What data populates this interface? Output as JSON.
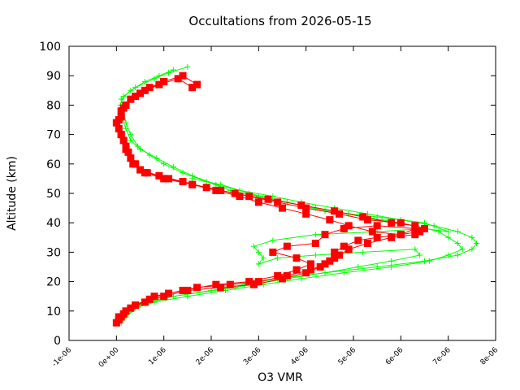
{
  "chart_data": {
    "type": "line",
    "title": "Occultations from 2026-05-15",
    "xlabel": "O3 VMR",
    "ylabel": "Altitude (km)",
    "xlim": [
      -1e-06,
      8e-06
    ],
    "ylim": [
      0,
      100
    ],
    "xticks": [
      -1e-06,
      0,
      1e-06,
      2e-06,
      3e-06,
      4e-06,
      5e-06,
      6e-06,
      7e-06,
      8e-06
    ],
    "xtick_labels": [
      "-1e-06",
      "0e+00",
      "1e-06",
      "2e-06",
      "3e-06",
      "4e-06",
      "5e-06",
      "6e-06",
      "7e-06",
      "8e-06"
    ],
    "yticks": [
      0,
      10,
      20,
      30,
      40,
      50,
      60,
      70,
      80,
      90,
      100
    ],
    "ytick_labels": [
      "0",
      "10",
      "20",
      "30",
      "40",
      "50",
      "60",
      "70",
      "80",
      "90",
      "100"
    ],
    "grid": false,
    "legend": "none",
    "series": [
      {
        "color": "#00ff00",
        "marker": "plus",
        "profiles": [
          [
            [
              1e-07,
              7
            ],
            [
              2e-07,
              9
            ],
            [
              3e-07,
              11
            ],
            [
              6e-07,
              13
            ],
            [
              1.2e-06,
              15
            ],
            [
              2e-06,
              17
            ],
            [
              2.7e-06,
              19
            ],
            [
              3.4e-06,
              21
            ],
            [
              4.4e-06,
              23
            ],
            [
              5.5e-06,
              25
            ],
            [
              6.5e-06,
              27
            ],
            [
              7.2e-06,
              29
            ],
            [
              7.5e-06,
              31
            ],
            [
              7.6e-06,
              33
            ],
            [
              7.5e-06,
              35
            ],
            [
              7.2e-06,
              37
            ],
            [
              6.7e-06,
              39
            ],
            [
              6e-06,
              41
            ],
            [
              5.3e-06,
              43
            ],
            [
              4.6e-06,
              45
            ],
            [
              3.9e-06,
              47
            ],
            [
              3.3e-06,
              49
            ],
            [
              2.6e-06,
              51
            ],
            [
              2.1e-06,
              53
            ],
            [
              1.6e-06,
              56
            ],
            [
              1.2e-06,
              59
            ],
            [
              8.5e-07,
              62
            ],
            [
              5e-07,
              65
            ],
            [
              3e-07,
              68
            ],
            [
              2e-07,
              72
            ],
            [
              1e-07,
              76
            ],
            [
              8e-08,
              80
            ],
            [
              1.5e-07,
              83
            ],
            [
              4e-07,
              86
            ],
            [
              8e-07,
              89
            ],
            [
              1.1e-06,
              91
            ],
            [
              1.5e-06,
              93
            ]
          ],
          [
            [
              1e-07,
              6
            ],
            [
              2e-07,
              8
            ],
            [
              4e-07,
              11
            ],
            [
              8e-07,
              13
            ],
            [
              1.5e-06,
              15
            ],
            [
              2.3e-06,
              17
            ],
            [
              3.1e-06,
              19
            ],
            [
              3.9e-06,
              21
            ],
            [
              4.8e-06,
              23
            ],
            [
              5.8e-06,
              25
            ],
            [
              6.6e-06,
              27
            ],
            [
              7e-06,
              29
            ],
            [
              7.3e-06,
              31
            ],
            [
              7.2e-06,
              33
            ],
            [
              7e-06,
              35
            ],
            [
              6.8e-06,
              37
            ],
            [
              6.3e-06,
              39
            ],
            [
              5.6e-06,
              41
            ],
            [
              4.9e-06,
              43
            ],
            [
              4.2e-06,
              45
            ],
            [
              3.6e-06,
              47
            ],
            [
              3e-06,
              49
            ],
            [
              2.4e-06,
              51
            ],
            [
              1.9e-06,
              54
            ],
            [
              1.4e-06,
              57
            ],
            [
              1e-06,
              60
            ],
            [
              7e-07,
              63
            ],
            [
              4.5e-07,
              66
            ],
            [
              3e-07,
              70
            ],
            [
              2e-07,
              74
            ],
            [
              1.5e-07,
              78
            ],
            [
              1e-07,
              82
            ],
            [
              3e-07,
              85
            ],
            [
              6e-07,
              88
            ],
            [
              9e-07,
              90
            ],
            [
              1.2e-06,
              92
            ]
          ],
          [
            [
              2e-07,
              8
            ],
            [
              5e-07,
              12
            ],
            [
              1.2e-06,
              15
            ],
            [
              2.5e-06,
              18
            ],
            [
              3.6e-06,
              21
            ],
            [
              4.4e-06,
              23
            ],
            [
              5.1e-06,
              25
            ],
            [
              5.8e-06,
              27
            ],
            [
              6.4e-06,
              29
            ],
            [
              6.3e-06,
              31
            ],
            [
              5.2e-06,
              30
            ],
            [
              4.2e-06,
              29
            ],
            [
              3.4e-06,
              28
            ],
            [
              3e-06,
              26
            ],
            [
              3.1e-06,
              28
            ],
            [
              3e-06,
              30
            ],
            [
              2.9e-06,
              32
            ],
            [
              3.3e-06,
              34
            ],
            [
              4.2e-06,
              36
            ],
            [
              5.5e-06,
              37
            ],
            [
              6.5e-06,
              38
            ],
            [
              7e-06,
              37
            ],
            [
              6.5e-06,
              40
            ],
            [
              5.5e-06,
              42
            ],
            [
              4.4e-06,
              44
            ],
            [
              3.6e-06,
              47
            ],
            [
              2.8e-06,
              50
            ],
            [
              2.2e-06,
              53
            ],
            [
              1.6e-06,
              55
            ]
          ]
        ]
      },
      {
        "color": "#ff0000",
        "marker": "filled-square",
        "profiles": [
          [
            [
              0.0,
              6
            ],
            [
              5e-08,
              8
            ],
            [
              2e-07,
              10
            ],
            [
              4e-07,
              12
            ],
            [
              7e-07,
              14
            ],
            [
              1.1e-06,
              16
            ],
            [
              1.7e-06,
              18
            ],
            [
              2.4e-06,
              19
            ],
            [
              3e-06,
              20
            ],
            [
              3.6e-06,
              22
            ],
            [
              4.1e-06,
              24
            ],
            [
              4.4e-06,
              26
            ],
            [
              4.6e-06,
              28
            ],
            [
              4.6e-06,
              30
            ],
            [
              4.8e-06,
              32
            ],
            [
              5.1e-06,
              34
            ],
            [
              5.5e-06,
              35
            ],
            [
              6e-06,
              36
            ],
            [
              6.4e-06,
              37
            ],
            [
              6.3e-06,
              39
            ],
            [
              5.8e-06,
              40
            ],
            [
              5.2e-06,
              42
            ],
            [
              4.6e-06,
              44
            ],
            [
              3.9e-06,
              46
            ],
            [
              3.2e-06,
              48
            ],
            [
              2.5e-06,
              50
            ],
            [
              1.9e-06,
              52
            ],
            [
              1.4e-06,
              54
            ],
            [
              9e-07,
              56
            ],
            [
              5e-07,
              58
            ],
            [
              3e-07,
              62
            ],
            [
              2e-07,
              66
            ],
            [
              1e-07,
              70
            ],
            [
              0.0,
              74
            ],
            [
              1e-07,
              78
            ],
            [
              3e-07,
              82
            ],
            [
              6e-07,
              85
            ],
            [
              1e-06,
              88
            ],
            [
              1.4e-06,
              90
            ],
            [
              1.7e-06,
              87
            ]
          ],
          [
            [
              5e-08,
              7
            ],
            [
              1.5e-07,
              9
            ],
            [
              3e-07,
              11
            ],
            [
              6e-07,
              13
            ],
            [
              1e-06,
              15
            ],
            [
              1.5e-06,
              17
            ],
            [
              2.2e-06,
              18
            ],
            [
              2.9e-06,
              19
            ],
            [
              3.5e-06,
              21
            ],
            [
              4e-06,
              23
            ],
            [
              4.3e-06,
              25
            ],
            [
              4.5e-06,
              27
            ],
            [
              4.7e-06,
              29
            ],
            [
              4.9e-06,
              31
            ],
            [
              5.3e-06,
              33
            ],
            [
              5.8e-06,
              35
            ],
            [
              6.3e-06,
              36
            ],
            [
              6.5e-06,
              38
            ],
            [
              6e-06,
              40
            ],
            [
              5.3e-06,
              41
            ],
            [
              4.7e-06,
              43
            ],
            [
              4e-06,
              45
            ],
            [
              3.4e-06,
              47
            ],
            [
              2.8e-06,
              49
            ],
            [
              2.2e-06,
              51
            ],
            [
              1.6e-06,
              53
            ],
            [
              1.1e-06,
              55
            ],
            [
              6.5e-07,
              57
            ],
            [
              4e-07,
              60
            ],
            [
              2.5e-07,
              64
            ],
            [
              1.5e-07,
              68
            ],
            [
              5e-08,
              72
            ],
            [
              1e-07,
              76
            ],
            [
              2e-07,
              80
            ],
            [
              5e-07,
              84
            ],
            [
              9e-07,
              87
            ],
            [
              1.3e-06,
              89
            ],
            [
              1.6e-06,
              86
            ]
          ],
          [
            [
              1e-07,
              8
            ],
            [
              4e-07,
              12
            ],
            [
              8e-07,
              15
            ],
            [
              1.4e-06,
              17
            ],
            [
              2.1e-06,
              19
            ],
            [
              2.8e-06,
              20
            ],
            [
              3.4e-06,
              22
            ],
            [
              3.8e-06,
              24
            ],
            [
              4.1e-06,
              26
            ],
            [
              3.8e-06,
              28
            ],
            [
              3.3e-06,
              30
            ],
            [
              3.6e-06,
              32
            ],
            [
              4.2e-06,
              33
            ],
            [
              4.4e-06,
              36
            ],
            [
              4.8e-06,
              38
            ],
            [
              5.5e-06,
              39
            ],
            [
              6.3e-06,
              38
            ],
            [
              6e-06,
              36
            ],
            [
              5.4e-06,
              37
            ],
            [
              4.9e-06,
              39
            ],
            [
              4.5e-06,
              41
            ],
            [
              4e-06,
              43
            ],
            [
              3.5e-06,
              45
            ],
            [
              3e-06,
              47
            ],
            [
              2.6e-06,
              49
            ],
            [
              2.1e-06,
              51
            ],
            [
              1.6e-06,
              53
            ],
            [
              1e-06,
              55
            ],
            [
              6e-07,
              57
            ],
            [
              3.5e-07,
              60
            ],
            [
              2e-07,
              65
            ],
            [
              1e-07,
              70
            ],
            [
              5e-08,
              75
            ],
            [
              1.5e-07,
              79
            ],
            [
              4e-07,
              83
            ],
            [
              7e-07,
              86
            ],
            [
              1e-06,
              88
            ]
          ]
        ]
      }
    ]
  }
}
